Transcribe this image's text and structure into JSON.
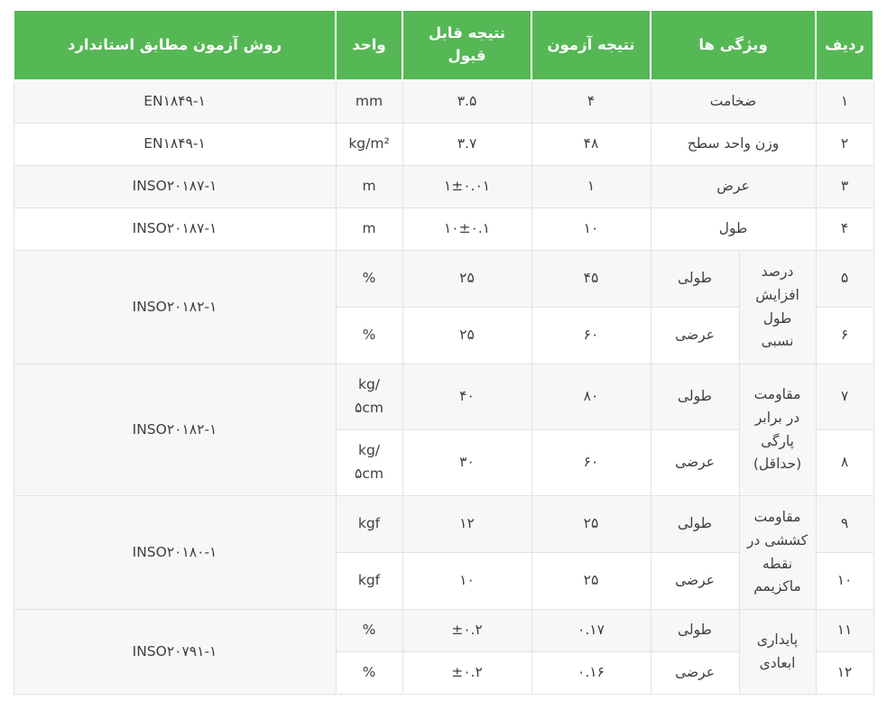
{
  "colors": {
    "header_bg": "#55b855",
    "header_text": "#ffffff",
    "stripe_bg": "#f7f7f7",
    "border": "#e2e2e2",
    "body_text": "#3f3f3f"
  },
  "table": {
    "header": {
      "index": "ردیف",
      "features": "ویژگی ها",
      "test_result": "نتیجه آزمون",
      "acceptable_result": "نتیجه قابل قبول",
      "unit": "واحد",
      "standard_method": "روش آزمون مطابق استاندارد"
    },
    "rows": [
      {
        "index": "۱",
        "feature": "ضخامت",
        "result": "۴",
        "acceptable": "۳.۵",
        "unit": "mm",
        "standard": "EN۱۸۴۹-۱"
      },
      {
        "index": "۲",
        "feature": "وزن واحد سطح",
        "result": "۴۸",
        "acceptable": "۳.۷",
        "unit": "kg/m²",
        "standard": "EN۱۸۴۹-۱"
      },
      {
        "index": "۳",
        "feature": "عرض",
        "result": "۱",
        "acceptable": "۱±۰.۰۱",
        "unit": "m",
        "standard": "INSO۲۰۱۸۷-۱"
      },
      {
        "index": "۴",
        "feature": "طول",
        "result": "۱۰",
        "acceptable": "۱۰±۰.۱",
        "unit": "m",
        "standard": "INSO۲۰۱۸۷-۱"
      },
      {
        "index": "۵",
        "feature": "درصد افزایش طول نسبی",
        "direction": "طولی",
        "result": "۴۵",
        "acceptable": "۲۵",
        "unit": "%",
        "standard": "INSO۲۰۱۸۲-۱"
      },
      {
        "index": "۶",
        "direction": "عرضی",
        "result": "۶۰",
        "acceptable": "۲۵",
        "unit": "%"
      },
      {
        "index": "۷",
        "feature": "مقاومت در برابر پارگی (حداقل)",
        "direction": "طولی",
        "result": "۸۰",
        "acceptable": "۴۰",
        "unit": "kg/\n۵cm",
        "standard": "INSO۲۰۱۸۲-۱"
      },
      {
        "index": "۸",
        "direction": "عرضی",
        "result": "۶۰",
        "acceptable": "۳۰",
        "unit": "kg/\n۵cm"
      },
      {
        "index": "۹",
        "feature": "مقاومت کششی در نقطه ماکزیمم",
        "direction": "طولی",
        "result": "۲۵",
        "acceptable": "۱۲",
        "unit": "kgf",
        "standard": "INSO۲۰۱۸۰-۱"
      },
      {
        "index": "۱۰",
        "direction": "عرضی",
        "result": "۲۵",
        "acceptable": "۱۰",
        "unit": "kgf"
      },
      {
        "index": "۱۱",
        "feature": "پایداری ابعادی",
        "direction": "طولی",
        "result": "۰.۱۷",
        "acceptable": "±۰.۲",
        "unit": "%",
        "standard": "INSO۲۰۷۹۱-۱"
      },
      {
        "index": "۱۲",
        "direction": "عرضی",
        "result": "۰.۱۶",
        "acceptable": "±۰.۲",
        "unit": "%"
      }
    ]
  }
}
